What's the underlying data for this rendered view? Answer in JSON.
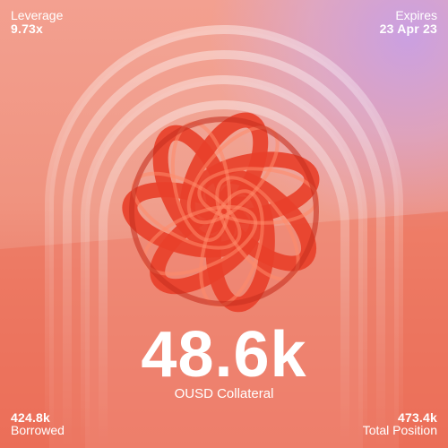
{
  "leverage": {
    "label": "Leverage",
    "value": "9.73x"
  },
  "expires": {
    "label": "Expires",
    "value": "23 Apr 23"
  },
  "collateral": {
    "value": "48.6k",
    "label": "OUSD Collateral"
  },
  "borrowed": {
    "value": "424.8k",
    "label": "Borrowed"
  },
  "total_position": {
    "value": "473.4k",
    "label": "Total Position"
  },
  "colors": {
    "background": "#f0937f",
    "accent_purple": "#c9a0e6",
    "ring_red": "#e8402a",
    "ring_highlight": "#ff8a6a"
  }
}
